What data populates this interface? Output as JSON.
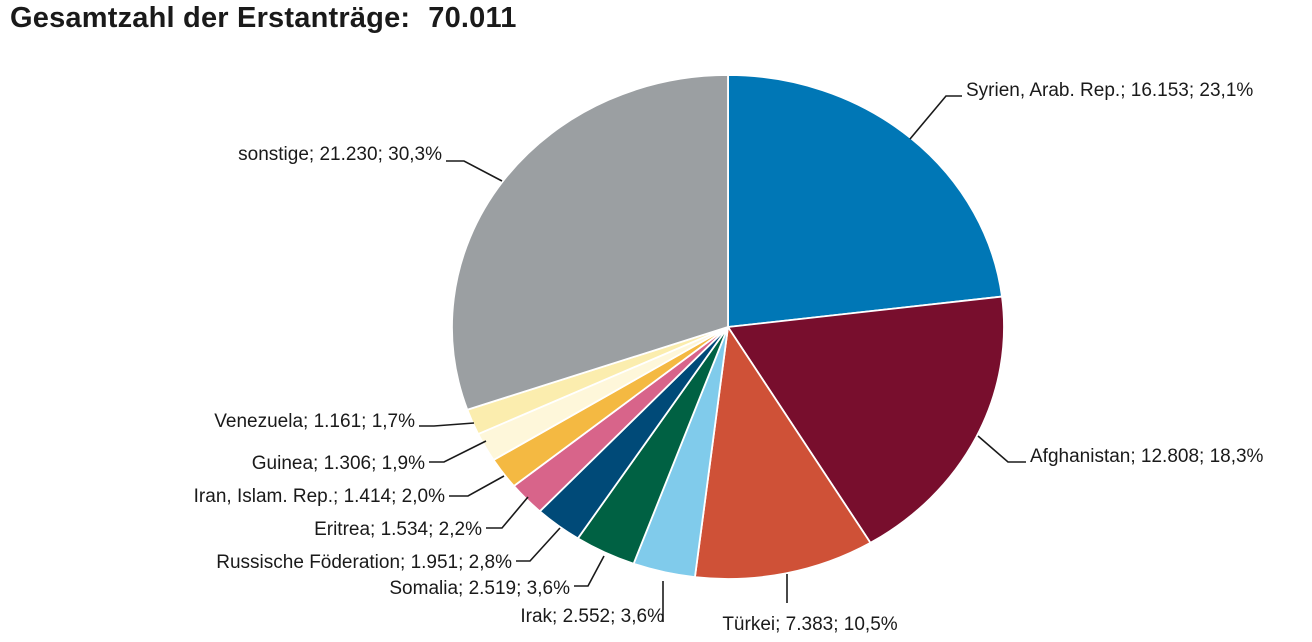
{
  "title": {
    "text": "Gesamtzahl der Erstanträge:",
    "total": "70.011"
  },
  "chart_data": {
    "type": "pie",
    "title": "Gesamtzahl der Erstanträge: 70.011",
    "total": 70011,
    "slices": [
      {
        "name": "Syrien, Arab. Rep.",
        "value": 16153,
        "percent": 23.1,
        "label": "Syrien, Arab. Rep.; 16.153; 23,1%",
        "color": "#0077B6"
      },
      {
        "name": "Afghanistan",
        "value": 12808,
        "percent": 18.3,
        "label": "Afghanistan; 12.808; 18,3%",
        "color": "#780E2D"
      },
      {
        "name": "Türkei",
        "value": 7383,
        "percent": 10.5,
        "label": "Türkei; 7.383; 10,5%",
        "color": "#CF5137"
      },
      {
        "name": "Irak",
        "value": 2552,
        "percent": 3.6,
        "label": "Irak; 2.552; 3,6%",
        "color": "#80CBEB"
      },
      {
        "name": "Somalia",
        "value": 2519,
        "percent": 3.6,
        "label": "Somalia; 2.519; 3,6%",
        "color": "#006143"
      },
      {
        "name": "Russische Föderation",
        "value": 1951,
        "percent": 2.8,
        "label": "Russische Föderation; 1.951; 2,8%",
        "color": "#004A78"
      },
      {
        "name": "Eritrea",
        "value": 1534,
        "percent": 2.2,
        "label": "Eritrea; 1.534; 2,2%",
        "color": "#D8648A"
      },
      {
        "name": "Iran, Islam. Rep.",
        "value": 1414,
        "percent": 2.0,
        "label": "Iran, Islam. Rep.; 1.414; 2,0%",
        "color": "#F4B942"
      },
      {
        "name": "Guinea",
        "value": 1306,
        "percent": 1.9,
        "label": "Guinea; 1.306; 1,9%",
        "color": "#FEF7DA"
      },
      {
        "name": "Venezuela",
        "value": 1161,
        "percent": 1.7,
        "label": "Venezuela; 1.161; 1,7%",
        "color": "#FBEDAE"
      },
      {
        "name": "sonstige",
        "value": 21230,
        "percent": 30.3,
        "label": "sonstige; 21.230; 30,3%",
        "color": "#9B9FA2"
      }
    ],
    "start_angle": "12 o'clock",
    "direction": "clockwise",
    "legend": "none (direct labels with leader lines)"
  }
}
